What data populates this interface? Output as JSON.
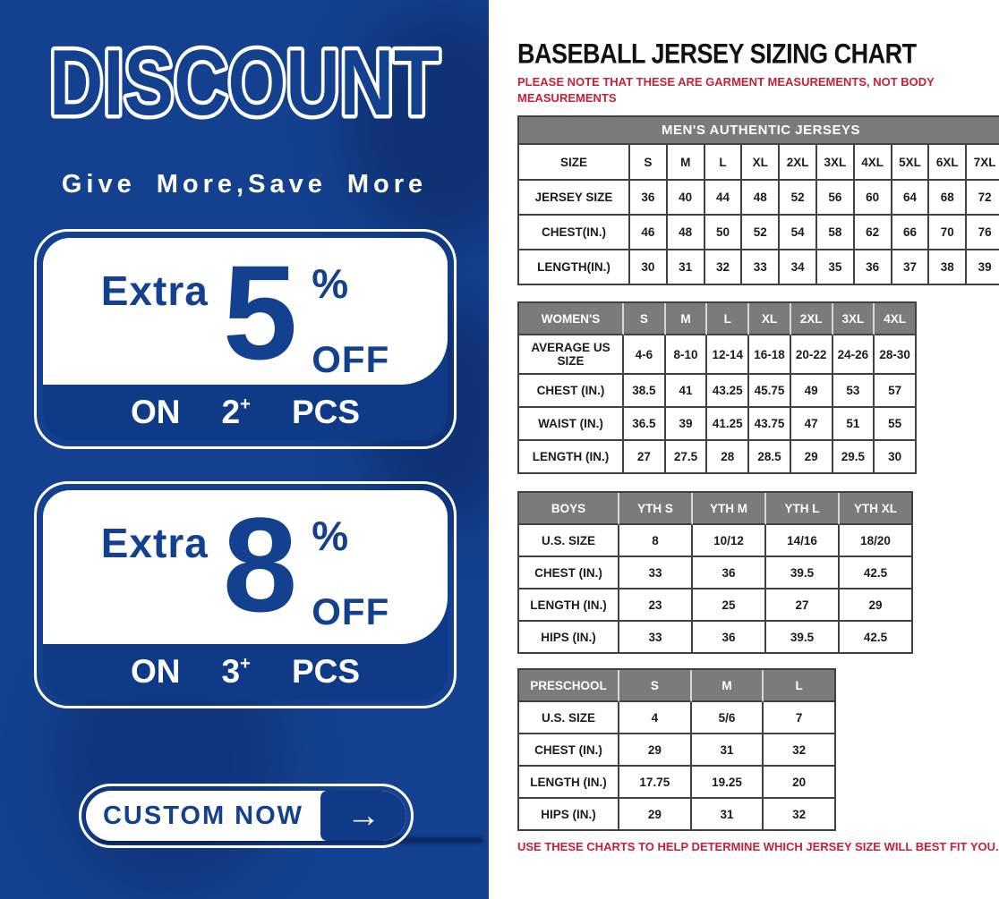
{
  "colors": {
    "panel_blue": "#14418f",
    "bar_blue": "#0e3a87",
    "table_header_gray": "#7b7b7b",
    "note_red": "#c6203a",
    "border_dark": "#414141"
  },
  "promo": {
    "title": "DISCOUNT",
    "subtitle": "Give More,Save More",
    "offers": [
      {
        "prefix": "Extra",
        "percent": "5",
        "percent_sign": "%",
        "off_label": "OFF",
        "on_label": "ON",
        "qty": "2",
        "qty_plus": "+",
        "pcs_label": "PCS"
      },
      {
        "prefix": "Extra",
        "percent": "8",
        "percent_sign": "%",
        "off_label": "OFF",
        "on_label": "ON",
        "qty": "3",
        "qty_plus": "+",
        "pcs_label": "PCS"
      }
    ],
    "cta": {
      "label": "CUSTOM NOW",
      "arrow": "→"
    }
  },
  "sizing": {
    "title": "BASEBALL JERSEY SIZING CHART",
    "note_top": "PLEASE NOTE THAT THESE ARE GARMENT MEASUREMENTS, NOT BODY MEASUREMENTS",
    "note_bottom": "USE THESE CHARTS TO HELP DETERMINE WHICH JERSEY SIZE WILL BEST FIT YOU.",
    "tables": [
      {
        "name": "mens",
        "banner": "MEN'S AUTHENTIC JERSEYS",
        "gray_header": false,
        "header": [
          "SIZE",
          "S",
          "M",
          "L",
          "XL",
          "2XL",
          "3XL",
          "4XL",
          "5XL",
          "6XL",
          "7XL"
        ],
        "rows": [
          [
            "JERSEY SIZE",
            "36",
            "40",
            "44",
            "48",
            "52",
            "56",
            "60",
            "64",
            "68",
            "72"
          ],
          [
            "CHEST(IN.)",
            "46",
            "48",
            "50",
            "52",
            "54",
            "58",
            "62",
            "66",
            "70",
            "76"
          ],
          [
            "LENGTH(IN.)",
            "30",
            "31",
            "32",
            "33",
            "34",
            "35",
            "36",
            "37",
            "38",
            "39"
          ]
        ]
      },
      {
        "name": "womens",
        "gray_header": true,
        "header": [
          "WOMEN'S",
          "S",
          "M",
          "L",
          "XL",
          "2XL",
          "3XL",
          "4XL"
        ],
        "rows": [
          [
            "AVERAGE US SIZE",
            "4-6",
            "8-10",
            "12-14",
            "16-18",
            "20-22",
            "24-26",
            "28-30"
          ],
          [
            "CHEST (IN.)",
            "38.5",
            "41",
            "43.25",
            "45.75",
            "49",
            "53",
            "57"
          ],
          [
            "WAIST (IN.)",
            "36.5",
            "39",
            "41.25",
            "43.75",
            "47",
            "51",
            "55"
          ],
          [
            "LENGTH (IN.)",
            "27",
            "27.5",
            "28",
            "28.5",
            "29",
            "29.5",
            "30"
          ]
        ]
      },
      {
        "name": "boys",
        "gray_header": true,
        "header": [
          "BOYS",
          "YTH S",
          "YTH M",
          "YTH L",
          "YTH XL"
        ],
        "rows": [
          [
            "U.S. SIZE",
            "8",
            "10/12",
            "14/16",
            "18/20"
          ],
          [
            "CHEST (IN.)",
            "33",
            "36",
            "39.5",
            "42.5"
          ],
          [
            "LENGTH (IN.)",
            "23",
            "25",
            "27",
            "29"
          ],
          [
            "HIPS (IN.)",
            "33",
            "36",
            "39.5",
            "42.5"
          ]
        ]
      },
      {
        "name": "preschool",
        "gray_header": true,
        "header": [
          "PRESCHOOL",
          "S",
          "M",
          "L"
        ],
        "rows": [
          [
            "U.S. SIZE",
            "4",
            "5/6",
            "7"
          ],
          [
            "CHEST (IN.)",
            "29",
            "31",
            "32"
          ],
          [
            "LENGTH (IN.)",
            "17.75",
            "19.25",
            "20"
          ],
          [
            "HIPS (IN.)",
            "29",
            "31",
            "32"
          ]
        ]
      }
    ]
  }
}
